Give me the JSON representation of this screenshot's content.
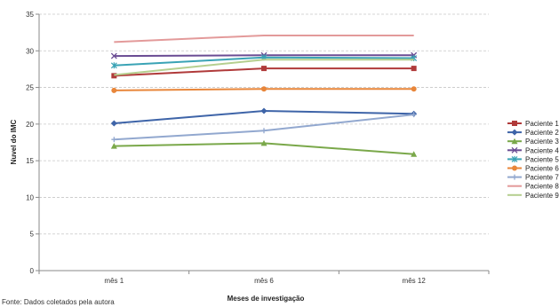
{
  "chart_data": {
    "type": "line",
    "title": "",
    "xlabel": "Meses de investigação",
    "ylabel": "Nuvel do IMC",
    "categories": [
      "mês 1",
      "mês 6",
      "mês 12"
    ],
    "ylim": [
      0,
      35
    ],
    "yticks": [
      0,
      5,
      10,
      15,
      20,
      25,
      30,
      35
    ],
    "grid": "horizontal-dashed",
    "legend_position": "right",
    "series": [
      {
        "name": "Paciente 1",
        "values": [
          26.6,
          27.6,
          27.6
        ],
        "color": "#b03a3a",
        "marker": "square"
      },
      {
        "name": "Paciente 2",
        "values": [
          20.1,
          21.8,
          21.4
        ],
        "color": "#3e64a8",
        "marker": "diamond"
      },
      {
        "name": "Paciente 3",
        "values": [
          17.0,
          17.4,
          15.9
        ],
        "color": "#7aa84a",
        "marker": "triangle"
      },
      {
        "name": "Paciente 4",
        "values": [
          29.3,
          29.4,
          29.4
        ],
        "color": "#6a4c93",
        "marker": "x"
      },
      {
        "name": "Paciente 5",
        "values": [
          28.0,
          29.1,
          29.0
        ],
        "color": "#3aa3b5",
        "marker": "star"
      },
      {
        "name": "Paciente 6",
        "values": [
          24.6,
          24.8,
          24.8
        ],
        "color": "#e8863a",
        "marker": "circle"
      },
      {
        "name": "Paciente 7",
        "values": [
          17.9,
          19.1,
          21.3
        ],
        "color": "#92a8cf",
        "marker": "plus"
      },
      {
        "name": "Paciente 8",
        "values": [
          31.2,
          32.1,
          32.1
        ],
        "color": "#e39a9a",
        "marker": "none"
      },
      {
        "name": "Paciente 9",
        "values": [
          26.7,
          28.8,
          28.8
        ],
        "color": "#b5cf8f",
        "marker": "none"
      }
    ]
  },
  "source_note": "Fonte: Dados coletados pela autora"
}
